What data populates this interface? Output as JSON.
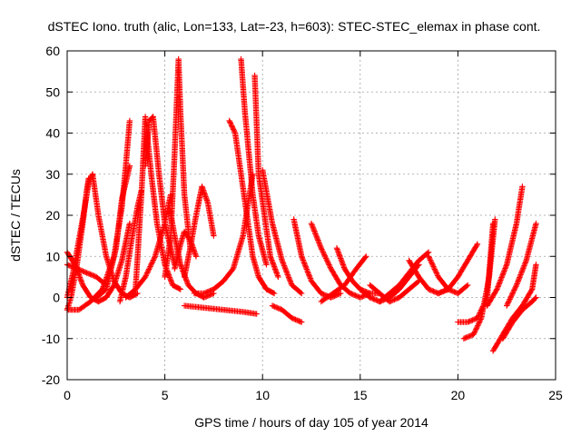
{
  "chart_data": {
    "type": "scatter",
    "title": "dSTEC Iono. truth (alic, Lon=133, Lat=-23, h=603): STEC-STEC_elemax in phase cont.",
    "xlabel": "GPS time / hours of day 105 of year 2014",
    "ylabel": "dSTEC  / TECUs",
    "xlim": [
      0,
      25
    ],
    "ylim": [
      -20,
      60
    ],
    "xticks": [
      0,
      5,
      10,
      15,
      20,
      25
    ],
    "yticks": [
      -20,
      -10,
      0,
      10,
      20,
      30,
      40,
      50,
      60
    ],
    "grid": true,
    "marker": "+",
    "color": "#ff0000",
    "series": [
      {
        "name": "arc-01",
        "x": [
          0.0,
          0.4,
          0.8,
          1.2,
          1.6,
          2.0,
          2.4,
          2.8,
          3.2
        ],
        "y": [
          11,
          8,
          3,
          0,
          -1,
          0,
          3,
          9,
          18
        ]
      },
      {
        "name": "arc-02",
        "x": [
          0.0,
          0.3,
          0.6,
          0.9,
          1.1,
          1.3
        ],
        "y": [
          0,
          6,
          14,
          22,
          28,
          30
        ]
      },
      {
        "name": "arc-03",
        "x": [
          1.3,
          1.6,
          2.0,
          2.4,
          2.8,
          3.2,
          3.6
        ],
        "y": [
          30,
          20,
          10,
          4,
          1,
          0,
          1
        ]
      },
      {
        "name": "arc-04",
        "x": [
          0.0,
          0.2,
          0.5,
          0.8,
          1.0,
          1.1
        ],
        "y": [
          -3,
          0,
          8,
          18,
          26,
          29
        ]
      },
      {
        "name": "arc-05",
        "x": [
          0.0,
          0.5,
          1.0,
          1.5,
          2.0
        ],
        "y": [
          8,
          7,
          6,
          5,
          3
        ]
      },
      {
        "name": "arc-06",
        "x": [
          0.0,
          0.6,
          1.2,
          1.8,
          2.4,
          2.8,
          3.0,
          3.2
        ],
        "y": [
          -3,
          -3,
          -1,
          2,
          10,
          22,
          32,
          43
        ]
      },
      {
        "name": "arc-07",
        "x": [
          1.5,
          2.0,
          2.5,
          2.8,
          3.2
        ],
        "y": [
          0,
          2,
          12,
          24,
          32
        ]
      },
      {
        "name": "arc-08",
        "x": [
          2.7,
          3.0,
          3.3,
          3.6,
          3.8
        ],
        "y": [
          -1,
          5,
          14,
          22,
          26
        ]
      },
      {
        "name": "arc-09",
        "x": [
          3.5,
          3.8,
          4.0,
          4.3,
          4.6,
          5.0,
          5.4,
          5.8
        ],
        "y": [
          2,
          25,
          44,
          30,
          18,
          8,
          3,
          2
        ]
      },
      {
        "name": "arc-10",
        "x": [
          4.0,
          4.2,
          4.4,
          4.7,
          5.0,
          5.5
        ],
        "y": [
          32,
          43,
          44,
          30,
          18,
          8
        ]
      },
      {
        "name": "arc-11",
        "x": [
          3.0,
          3.5,
          4.0,
          4.5,
          5.0,
          5.3
        ],
        "y": [
          0,
          2,
          5,
          10,
          18,
          25
        ]
      },
      {
        "name": "arc-12",
        "x": [
          5.0,
          5.3,
          5.5,
          5.7,
          5.8,
          6.0,
          6.3
        ],
        "y": [
          5,
          15,
          35,
          58,
          45,
          25,
          12
        ]
      },
      {
        "name": "arc-13",
        "x": [
          5.2,
          5.5,
          5.8,
          6.2,
          6.6,
          7.0,
          7.5
        ],
        "y": [
          23,
          15,
          8,
          3,
          1,
          0,
          1
        ]
      },
      {
        "name": "arc-14",
        "x": [
          6.0,
          6.3,
          6.6,
          6.9,
          7.2,
          7.5
        ],
        "y": [
          5,
          12,
          20,
          27,
          23,
          15
        ]
      },
      {
        "name": "arc-15",
        "x": [
          5.5,
          5.8,
          6.0,
          6.3,
          6.6
        ],
        "y": [
          7,
          13,
          16,
          14,
          10
        ]
      },
      {
        "name": "arc-16",
        "x": [
          6.5,
          7.0,
          7.5,
          8.0,
          8.5,
          9.0,
          9.5
        ],
        "y": [
          1,
          1,
          2,
          4,
          7,
          15,
          30
        ]
      },
      {
        "name": "arc-17",
        "x": [
          8.3,
          8.6,
          8.9,
          9.2,
          9.5,
          9.8,
          10.2,
          10.6
        ],
        "y": [
          43,
          40,
          30,
          20,
          10,
          5,
          2,
          1
        ]
      },
      {
        "name": "arc-18",
        "x": [
          8.9,
          9.1,
          9.3,
          9.5,
          9.8,
          10.2
        ],
        "y": [
          58,
          45,
          35,
          25,
          15,
          8
        ]
      },
      {
        "name": "arc-19",
        "x": [
          9.6,
          9.8,
          10.1,
          10.4,
          10.8
        ],
        "y": [
          54,
          30,
          20,
          10,
          5
        ]
      },
      {
        "name": "arc-20",
        "x": [
          6.0,
          7.0,
          8.0,
          9.0,
          9.7
        ],
        "y": [
          -2,
          -2.5,
          -3,
          -3.5,
          -4
        ]
      },
      {
        "name": "arc-21",
        "x": [
          10.5,
          11.0,
          11.5,
          12.0
        ],
        "y": [
          -2,
          -3,
          -5,
          -6
        ]
      },
      {
        "name": "arc-22",
        "x": [
          10.0,
          10.5,
          11.0,
          11.5,
          12.0
        ],
        "y": [
          31,
          18,
          9,
          3,
          1
        ]
      },
      {
        "name": "arc-23",
        "x": [
          11.6,
          12.0,
          12.5,
          13.0,
          13.5,
          14.0
        ],
        "y": [
          19,
          10,
          4,
          1,
          0,
          1
        ]
      },
      {
        "name": "arc-24",
        "x": [
          12.5,
          13.0,
          13.5,
          14.0,
          14.5,
          15.0,
          15.5
        ],
        "y": [
          18,
          12,
          7,
          3,
          1,
          0,
          1
        ]
      },
      {
        "name": "arc-25",
        "x": [
          13.8,
          14.2,
          14.6,
          15.0,
          15.5,
          16.0
        ],
        "y": [
          12,
          7,
          4,
          2,
          1,
          1
        ]
      },
      {
        "name": "arc-26",
        "x": [
          13.0,
          13.6,
          14.2,
          14.8,
          15.3
        ],
        "y": [
          -1,
          1,
          3,
          7,
          10
        ]
      },
      {
        "name": "arc-27",
        "x": [
          15.0,
          15.5,
          16.0,
          16.5,
          17.0,
          17.5,
          18.0
        ],
        "y": [
          2,
          0,
          -1,
          0,
          2,
          5,
          8
        ]
      },
      {
        "name": "arc-28",
        "x": [
          16.0,
          16.5,
          17.0,
          17.5,
          18.0,
          18.5
        ],
        "y": [
          -1,
          1,
          3,
          6,
          9,
          11
        ]
      },
      {
        "name": "arc-29",
        "x": [
          15.5,
          16.0,
          16.5,
          17.0,
          17.5,
          18.0
        ],
        "y": [
          3,
          1,
          -1,
          0,
          2,
          4
        ]
      },
      {
        "name": "arc-30",
        "x": [
          17.5,
          18.0,
          18.5,
          19.0,
          19.5
        ],
        "y": [
          9,
          5,
          2,
          1,
          2
        ]
      },
      {
        "name": "arc-31",
        "x": [
          18.5,
          19.0,
          19.5,
          20.0,
          20.5
        ],
        "y": [
          10,
          5,
          2,
          1,
          3
        ]
      },
      {
        "name": "arc-32",
        "x": [
          19.0,
          19.5,
          20.0,
          20.5,
          21.0
        ],
        "y": [
          1,
          2,
          5,
          9,
          13
        ]
      },
      {
        "name": "arc-33",
        "x": [
          20.0,
          20.5,
          21.0,
          21.5,
          21.8
        ],
        "y": [
          -6,
          -6,
          -5,
          0,
          18
        ]
      },
      {
        "name": "arc-34",
        "x": [
          20.3,
          20.8,
          21.2,
          21.6,
          21.9
        ],
        "y": [
          -10,
          -9,
          -5,
          5,
          19
        ]
      },
      {
        "name": "arc-35",
        "x": [
          21.5,
          22.0,
          22.5,
          23.0,
          23.3
        ],
        "y": [
          -2,
          2,
          8,
          18,
          27
        ]
      },
      {
        "name": "arc-36",
        "x": [
          21.8,
          22.3,
          22.8,
          23.3,
          23.8,
          24.0
        ],
        "y": [
          -13,
          -9,
          -5,
          -2,
          2,
          8
        ]
      },
      {
        "name": "arc-37",
        "x": [
          22.5,
          23.0,
          23.5,
          24.0
        ],
        "y": [
          -2,
          3,
          9,
          18
        ]
      },
      {
        "name": "arc-38",
        "x": [
          22.3,
          22.8,
          23.3,
          23.8,
          24.0
        ],
        "y": [
          -10,
          -6,
          -3,
          -1,
          0
        ]
      }
    ]
  }
}
